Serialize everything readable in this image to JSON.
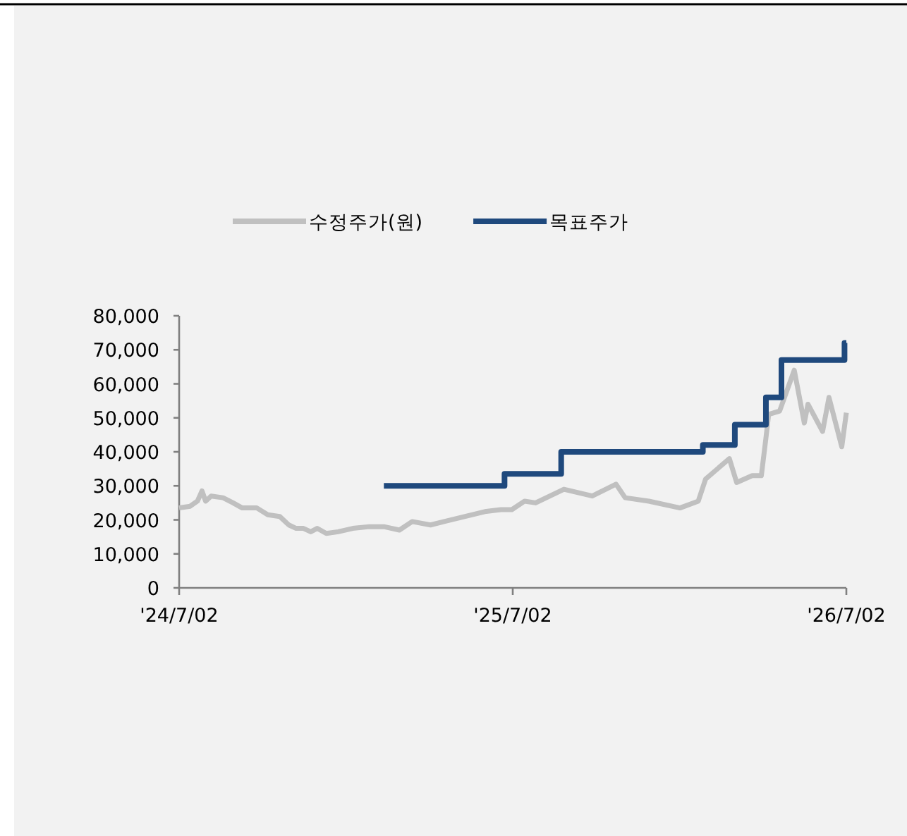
{
  "chart_data": {
    "type": "line",
    "legend": "top",
    "grid": false,
    "xlim": [
      "2024-07-02",
      "2026-07-02"
    ],
    "xticks": [
      {
        "value": "2024-07-02",
        "label": "'24/7/02"
      },
      {
        "value": "2025-07-02",
        "label": "'25/7/02"
      },
      {
        "value": "2026-07-02",
        "label": "'26/7/02"
      }
    ],
    "ylim": [
      0,
      80000
    ],
    "yticks": [
      {
        "value": 0,
        "label": "0"
      },
      {
        "value": 10000,
        "label": "10,000"
      },
      {
        "value": 20000,
        "label": "20,000"
      },
      {
        "value": 30000,
        "label": "30,000"
      },
      {
        "value": 40000,
        "label": "40,000"
      },
      {
        "value": 50000,
        "label": "50,000"
      },
      {
        "value": 60000,
        "label": "60,000"
      },
      {
        "value": 70000,
        "label": "70,000"
      },
      {
        "value": 80000,
        "label": "80,000"
      }
    ],
    "series": [
      {
        "name": "수정주가(원)",
        "color": "#c0c0c0",
        "x": [
          "2024-07-02",
          "2024-07-14",
          "2024-07-22",
          "2024-07-27",
          "2024-07-31",
          "2024-08-06",
          "2024-08-19",
          "2024-08-30",
          "2024-09-09",
          "2024-09-25",
          "2024-10-07",
          "2024-10-20",
          "2024-10-30",
          "2024-11-07",
          "2024-11-15",
          "2024-11-23",
          "2024-11-30",
          "2024-12-10",
          "2024-12-23",
          "2025-01-08",
          "2025-01-26",
          "2025-02-11",
          "2025-02-28",
          "2025-03-14",
          "2025-04-03",
          "2025-04-18",
          "2025-05-11",
          "2025-06-03",
          "2025-06-19",
          "2025-07-01",
          "2025-07-15",
          "2025-07-27",
          "2025-08-27",
          "2025-09-27",
          "2025-10-23",
          "2025-11-02",
          "2025-11-28",
          "2026-01-01",
          "2026-01-21",
          "2026-01-29",
          "2026-02-24",
          "2026-03-04",
          "2026-03-21",
          "2026-03-31",
          "2026-04-05",
          "2026-04-08",
          "2026-04-20",
          "2026-05-06",
          "2026-05-17",
          "2026-05-21",
          "2026-06-06",
          "2026-06-13",
          "2026-06-27",
          "2026-07-02"
        ],
        "values": [
          23500,
          24000,
          25500,
          28500,
          25500,
          27000,
          26500,
          25000,
          23500,
          23500,
          21500,
          21000,
          18500,
          17500,
          17500,
          16500,
          17500,
          16000,
          16500,
          17500,
          18000,
          18000,
          17000,
          19500,
          18500,
          19500,
          21000,
          22500,
          23000,
          23000,
          25500,
          25000,
          29000,
          27000,
          30500,
          26500,
          25500,
          23500,
          25500,
          32000,
          38000,
          31000,
          33000,
          33000,
          44000,
          51000,
          52000,
          64000,
          48500,
          54000,
          46000,
          56000,
          41500,
          51500
        ]
      },
      {
        "name": "목표주가",
        "color": "#1f497d",
        "type": "step",
        "x": [
          "2025-02-11",
          "2025-06-23",
          "2025-08-24",
          "2026-01-26",
          "2026-03-02",
          "2026-04-05",
          "2026-04-22",
          "2026-06-30",
          "2026-07-02"
        ],
        "values": [
          30000,
          33500,
          40000,
          42000,
          48000,
          56000,
          67000,
          72000,
          72000
        ]
      }
    ]
  }
}
